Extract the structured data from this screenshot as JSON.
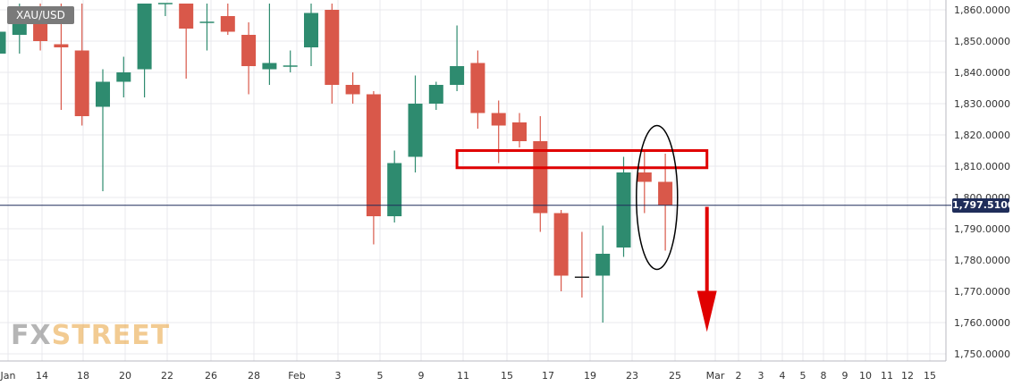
{
  "header": {
    "symbol": "XAU/USD"
  },
  "logo": {
    "part1": "FX",
    "part2": "STREET"
  },
  "colors": {
    "up": "#2e8b6f",
    "down": "#d9584a",
    "annotation": "#e00000",
    "price_line": "#1f2d5a",
    "grid": "#e8e8ee"
  },
  "chart_data": {
    "type": "candlestick",
    "title": "",
    "xlabel": "",
    "ylabel": "",
    "ylim": [
      1748,
      1862
    ],
    "grid": true,
    "y_ticks": [
      "1,860.0000",
      "1,850.0000",
      "1,840.0000",
      "1,830.0000",
      "1,820.0000",
      "1,810.0000",
      "1,800.0000",
      "1,790.0000",
      "1,780.0000",
      "1,770.0000",
      "1,760.0000",
      "1,750.0000"
    ],
    "x_ticks": [
      "Jan",
      "14",
      "18",
      "20",
      "22",
      "26",
      "28",
      "Feb",
      "3",
      "5",
      "9",
      "11",
      "15",
      "17",
      "19",
      "23",
      "25",
      "Mar",
      "2",
      "3",
      "4",
      "5",
      "8",
      "9",
      "10",
      "11",
      "12",
      "15"
    ],
    "last_price": 1797.51,
    "last_price_label": "1,797.5100",
    "candles": [
      {
        "open": 1846.0,
        "high": 1855.0,
        "low": 1836.0,
        "close": 1853.0
      },
      {
        "open": 1852.0,
        "high": 1862.0,
        "low": 1846.0,
        "close": 1860.0
      },
      {
        "open": 1860.0,
        "high": 1862.0,
        "low": 1847.0,
        "close": 1850.0
      },
      {
        "open": 1849.0,
        "high": 1862.0,
        "low": 1828.0,
        "close": 1848.0
      },
      {
        "open": 1847.0,
        "high": 1862.0,
        "low": 1823.0,
        "close": 1826.0
      },
      {
        "open": 1829.0,
        "high": 1841.0,
        "low": 1802.0,
        "close": 1837.0
      },
      {
        "open": 1837.0,
        "high": 1845.0,
        "low": 1832.0,
        "close": 1840.0
      },
      {
        "open": 1841.0,
        "high": 1862.0,
        "low": 1832.0,
        "close": 1862.0
      },
      {
        "open": 1862.0,
        "high": 1862.0,
        "low": 1858.0,
        "close": 1862.0
      },
      {
        "open": 1862.0,
        "high": 1862.0,
        "low": 1838.0,
        "close": 1854.0
      },
      {
        "open": 1856.0,
        "high": 1862.0,
        "low": 1847.0,
        "close": 1856.0
      },
      {
        "open": 1858.0,
        "high": 1862.0,
        "low": 1852.0,
        "close": 1853.0
      },
      {
        "open": 1852.0,
        "high": 1856.0,
        "low": 1833.0,
        "close": 1842.0
      },
      {
        "open": 1841.0,
        "high": 1862.0,
        "low": 1836.0,
        "close": 1843.0
      },
      {
        "open": 1842.0,
        "high": 1847.0,
        "low": 1840.0,
        "close": 1842.0
      },
      {
        "open": 1848.0,
        "high": 1862.0,
        "low": 1842.0,
        "close": 1859.0
      },
      {
        "open": 1860.0,
        "high": 1862.0,
        "low": 1830.0,
        "close": 1836.0
      },
      {
        "open": 1836.0,
        "high": 1840.0,
        "low": 1830.0,
        "close": 1833.0
      },
      {
        "open": 1833.0,
        "high": 1834.0,
        "low": 1785.0,
        "close": 1794.0
      },
      {
        "open": 1794.0,
        "high": 1815.0,
        "low": 1792.0,
        "close": 1811.0
      },
      {
        "open": 1813.0,
        "high": 1839.0,
        "low": 1808.0,
        "close": 1830.0
      },
      {
        "open": 1830.0,
        "high": 1837.0,
        "low": 1828.0,
        "close": 1836.0
      },
      {
        "open": 1836.0,
        "high": 1855.0,
        "low": 1834.0,
        "close": 1842.0
      },
      {
        "open": 1843.0,
        "high": 1847.0,
        "low": 1822.0,
        "close": 1827.0
      },
      {
        "open": 1827.0,
        "high": 1831.0,
        "low": 1811.0,
        "close": 1823.0
      },
      {
        "open": 1824.0,
        "high": 1827.0,
        "low": 1816.0,
        "close": 1818.0
      },
      {
        "open": 1818.0,
        "high": 1826.0,
        "low": 1789.0,
        "close": 1795.0
      },
      {
        "open": 1795.0,
        "high": 1796.0,
        "low": 1770.0,
        "close": 1775.0
      },
      {
        "open": 1774.5,
        "high": 1789.0,
        "low": 1768.0,
        "close": 1774.0
      },
      {
        "open": 1775.0,
        "high": 1791.0,
        "low": 1760.0,
        "close": 1782.0
      },
      {
        "open": 1784.0,
        "high": 1813.0,
        "low": 1781.0,
        "close": 1808.0
      },
      {
        "open": 1808.0,
        "high": 1815.0,
        "low": 1795.0,
        "close": 1805.0
      },
      {
        "open": 1805.0,
        "high": 1814.0,
        "low": 1783.0,
        "close": 1797.5
      }
    ],
    "annotations": {
      "resistance_zone": {
        "from": 1809.5,
        "to": 1815.0,
        "start_index": 22,
        "end_index": 34
      },
      "highlight_ellipse": {
        "index": 31.6,
        "from": 1777.0,
        "to": 1823.0
      },
      "down_arrow": {
        "index": 34,
        "from": 1797.0,
        "to": 1757.0
      }
    }
  }
}
